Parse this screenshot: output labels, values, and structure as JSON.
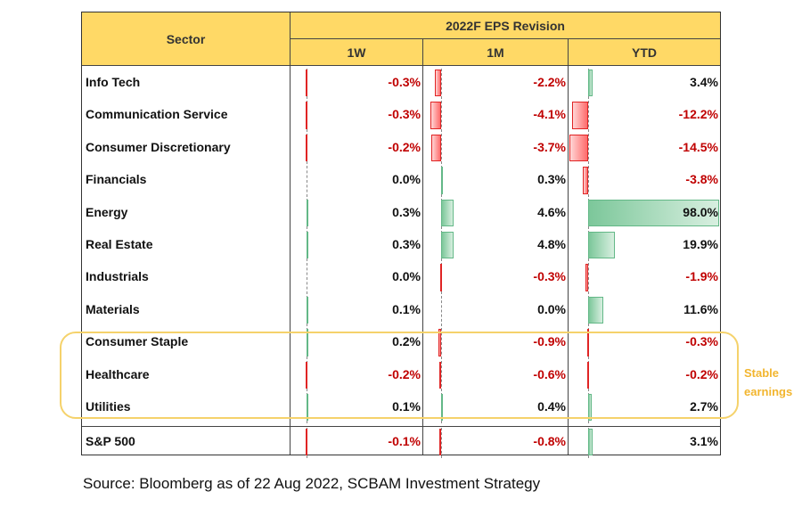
{
  "table": {
    "sector_header": "Sector",
    "group_header": "2022F EPS Revision",
    "columns": [
      "1W",
      "1M",
      "YTD"
    ]
  },
  "chart_data": {
    "type": "table",
    "categories": [
      "Info Tech",
      "Communication Service",
      "Consumer Discretionary",
      "Financials",
      "Energy",
      "Real Estate",
      "Industrials",
      "Materials",
      "Consumer Staple",
      "Healthcare",
      "Utilities",
      "S&P 500"
    ],
    "series": [
      {
        "name": "1W",
        "values": [
          -0.3,
          -0.3,
          -0.2,
          0.0,
          0.3,
          0.3,
          0.0,
          0.1,
          0.2,
          -0.2,
          0.1,
          -0.1
        ]
      },
      {
        "name": "1M",
        "values": [
          -2.2,
          -4.1,
          -3.7,
          0.3,
          4.6,
          4.8,
          -0.3,
          0.0,
          -0.9,
          -0.6,
          0.4,
          -0.8
        ]
      },
      {
        "name": "YTD",
        "values": [
          3.4,
          -12.2,
          -14.5,
          -3.8,
          98.0,
          19.9,
          -1.9,
          11.6,
          -0.3,
          -0.2,
          2.7,
          3.1
        ]
      }
    ],
    "labels": [
      [
        "-0.3%",
        "-0.3%",
        "-0.2%",
        "0.0%",
        "0.3%",
        "0.3%",
        "0.0%",
        "0.1%",
        "0.2%",
        "-0.2%",
        "0.1%",
        "-0.1%"
      ],
      [
        "-2.2%",
        "-4.1%",
        "-3.7%",
        "0.3%",
        "4.6%",
        "4.8%",
        "-0.3%",
        "0.0%",
        "-0.9%",
        "-0.6%",
        "0.4%",
        "-0.8%"
      ],
      [
        "3.4%",
        "-12.2%",
        "-14.5%",
        "-3.8%",
        "98.0%",
        "19.9%",
        "-1.9%",
        "11.6%",
        "-0.3%",
        "-0.2%",
        "2.7%",
        "3.1%"
      ]
    ],
    "colors": {
      "positive": "#7cc79a",
      "negative": "#ff6b6b",
      "neg_text": "#c00000",
      "header": "#ffd966"
    }
  },
  "annotation": {
    "line1": "Stable",
    "line2": "earnings"
  },
  "source": "Source: Bloomberg as of 22 Aug 2022, SCBAM Investment Strategy"
}
